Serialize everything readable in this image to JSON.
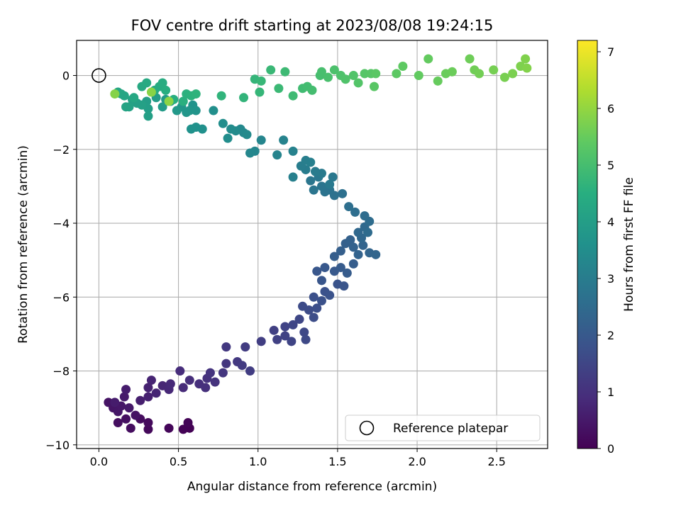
{
  "chart_data": {
    "type": "scatter",
    "title": "FOV centre drift starting at 2023/08/08 19:24:15",
    "xlabel": "Angular distance from reference (arcmin)",
    "ylabel": "Rotation from reference (arcmin)",
    "xlim": [
      -0.14,
      2.82
    ],
    "ylim": [
      -10.1,
      0.95
    ],
    "xticks": [
      0.0,
      0.5,
      1.0,
      1.5,
      2.0,
      2.5
    ],
    "xtick_labels": [
      "0.0",
      "0.5",
      "1.0",
      "1.5",
      "2.0",
      "2.5"
    ],
    "yticks": [
      0,
      -2,
      -4,
      -6,
      -8,
      -10
    ],
    "ytick_labels": [
      "0",
      "−2",
      "−4",
      "−6",
      "−8",
      "−10"
    ],
    "grid": true,
    "colormap": "viridis",
    "colorbar": {
      "label": "Hours from first FF file",
      "range": [
        0,
        7.2
      ],
      "ticks": [
        0,
        1,
        2,
        3,
        4,
        5,
        6,
        7
      ],
      "tick_labels": [
        "0",
        "1",
        "2",
        "3",
        "4",
        "5",
        "6",
        "7"
      ]
    },
    "legend": {
      "placement": "lower-right",
      "entries": [
        "Reference platepar"
      ]
    },
    "reference_point": {
      "x": 0.0,
      "y": 0.0,
      "marker": "open-circle",
      "color": "#000000"
    },
    "series": [
      {
        "color_by": "Hours from first FF file",
        "points": [
          [
            0.57,
            -9.55,
            0.02
          ],
          [
            0.53,
            -9.58,
            0.05
          ],
          [
            0.56,
            -9.4,
            0.08
          ],
          [
            0.44,
            -9.55,
            0.11
          ],
          [
            0.31,
            -9.58,
            0.14
          ],
          [
            0.31,
            -9.4,
            0.18
          ],
          [
            0.26,
            -9.3,
            0.22
          ],
          [
            0.2,
            -9.55,
            0.25
          ],
          [
            0.12,
            -9.4,
            0.28
          ],
          [
            0.17,
            -9.3,
            0.31
          ],
          [
            0.23,
            -9.2,
            0.34
          ],
          [
            0.06,
            -8.85,
            0.37
          ],
          [
            0.09,
            -9.0,
            0.4
          ],
          [
            0.12,
            -9.1,
            0.43
          ],
          [
            0.14,
            -8.95,
            0.46
          ],
          [
            0.19,
            -9.0,
            0.49
          ],
          [
            0.16,
            -8.7,
            0.52
          ],
          [
            0.1,
            -8.85,
            0.55
          ],
          [
            0.17,
            -8.5,
            0.58
          ],
          [
            0.26,
            -8.8,
            0.61
          ],
          [
            0.31,
            -8.7,
            0.64
          ],
          [
            0.31,
            -8.45,
            0.68
          ],
          [
            0.33,
            -8.25,
            0.71
          ],
          [
            0.36,
            -8.6,
            0.74
          ],
          [
            0.4,
            -8.4,
            0.77
          ],
          [
            0.44,
            -8.5,
            0.8
          ],
          [
            0.45,
            -8.35,
            0.83
          ],
          [
            0.53,
            -8.45,
            0.86
          ],
          [
            0.51,
            -8.0,
            0.89
          ],
          [
            0.57,
            -8.25,
            0.92
          ],
          [
            0.63,
            -8.35,
            0.95
          ],
          [
            0.67,
            -8.45,
            0.98
          ],
          [
            0.68,
            -8.2,
            1.01
          ],
          [
            0.73,
            -8.3,
            1.04
          ],
          [
            0.7,
            -8.05,
            1.08
          ],
          [
            0.78,
            -8.05,
            1.11
          ],
          [
            0.8,
            -7.8,
            1.14
          ],
          [
            0.8,
            -7.35,
            1.17
          ],
          [
            0.87,
            -7.75,
            1.2
          ],
          [
            0.9,
            -7.85,
            1.23
          ],
          [
            0.92,
            -7.35,
            1.26
          ],
          [
            0.95,
            -8.0,
            1.29
          ],
          [
            1.02,
            -7.2,
            1.32
          ],
          [
            1.1,
            -6.9,
            1.35
          ],
          [
            1.12,
            -7.15,
            1.38
          ],
          [
            1.17,
            -7.05,
            1.41
          ],
          [
            1.17,
            -6.8,
            1.44
          ],
          [
            1.21,
            -7.2,
            1.47
          ],
          [
            1.22,
            -6.75,
            1.5
          ],
          [
            1.26,
            -6.6,
            1.53
          ],
          [
            1.29,
            -6.95,
            1.56
          ],
          [
            1.3,
            -7.15,
            1.59
          ],
          [
            1.28,
            -6.25,
            1.62
          ],
          [
            1.32,
            -6.35,
            1.65
          ],
          [
            1.35,
            -6.55,
            1.68
          ],
          [
            1.37,
            -6.3,
            1.71
          ],
          [
            1.35,
            -6.0,
            1.74
          ],
          [
            1.4,
            -6.1,
            1.77
          ],
          [
            1.42,
            -5.85,
            1.8
          ],
          [
            1.45,
            -5.95,
            1.83
          ],
          [
            1.5,
            -5.65,
            1.86
          ],
          [
            1.54,
            -5.7,
            1.89
          ],
          [
            1.4,
            -5.55,
            1.92
          ],
          [
            1.37,
            -5.3,
            1.95
          ],
          [
            1.42,
            -5.2,
            1.98
          ],
          [
            1.48,
            -5.3,
            2.01
          ],
          [
            1.52,
            -5.2,
            2.04
          ],
          [
            1.56,
            -5.35,
            2.07
          ],
          [
            1.6,
            -5.1,
            2.1
          ],
          [
            1.48,
            -4.9,
            2.13
          ],
          [
            1.52,
            -4.75,
            2.16
          ],
          [
            1.55,
            -4.55,
            2.19
          ],
          [
            1.58,
            -4.45,
            2.22
          ],
          [
            1.6,
            -4.65,
            2.25
          ],
          [
            1.63,
            -4.85,
            2.28
          ],
          [
            1.66,
            -4.6,
            2.31
          ],
          [
            1.7,
            -4.8,
            2.34
          ],
          [
            1.74,
            -4.85,
            2.37
          ],
          [
            1.65,
            -4.4,
            2.4
          ],
          [
            1.63,
            -4.25,
            2.43
          ],
          [
            1.67,
            -4.1,
            2.46
          ],
          [
            1.69,
            -4.25,
            2.49
          ],
          [
            1.7,
            -3.95,
            2.52
          ],
          [
            1.67,
            -3.8,
            2.55
          ],
          [
            1.61,
            -3.7,
            2.58
          ],
          [
            1.57,
            -3.55,
            2.61
          ],
          [
            1.53,
            -3.2,
            2.64
          ],
          [
            1.48,
            -3.25,
            2.67
          ],
          [
            1.45,
            -3.1,
            2.7
          ],
          [
            1.42,
            -3.15,
            2.73
          ],
          [
            1.4,
            -3.0,
            2.76
          ],
          [
            1.35,
            -3.1,
            2.79
          ],
          [
            1.33,
            -2.85,
            2.82
          ],
          [
            1.38,
            -2.75,
            2.85
          ],
          [
            1.47,
            -2.75,
            2.88
          ],
          [
            1.45,
            -2.95,
            2.91
          ],
          [
            1.4,
            -2.65,
            2.94
          ],
          [
            1.36,
            -2.6,
            2.97
          ],
          [
            1.3,
            -2.55,
            3.0
          ],
          [
            1.27,
            -2.45,
            3.03
          ],
          [
            1.3,
            -2.3,
            3.06
          ],
          [
            1.33,
            -2.35,
            3.09
          ],
          [
            1.22,
            -2.75,
            3.12
          ],
          [
            1.22,
            -2.05,
            3.15
          ],
          [
            1.16,
            -1.75,
            3.18
          ],
          [
            1.12,
            -2.15,
            3.21
          ],
          [
            1.02,
            -1.75,
            3.24
          ],
          [
            0.98,
            -2.05,
            3.27
          ],
          [
            0.95,
            -2.1,
            3.3
          ],
          [
            0.91,
            -1.55,
            3.33
          ],
          [
            0.89,
            -1.45,
            3.36
          ],
          [
            0.93,
            -1.6,
            3.39
          ],
          [
            0.86,
            -1.5,
            3.42
          ],
          [
            0.83,
            -1.45,
            3.45
          ],
          [
            0.81,
            -1.7,
            3.48
          ],
          [
            0.78,
            -1.3,
            3.51
          ],
          [
            0.72,
            -0.95,
            3.54
          ],
          [
            0.65,
            -1.45,
            3.57
          ],
          [
            0.61,
            -1.4,
            3.6
          ],
          [
            0.58,
            -1.45,
            3.63
          ],
          [
            0.59,
            -0.8,
            3.66
          ],
          [
            0.61,
            -0.95,
            3.69
          ],
          [
            0.57,
            -0.95,
            3.72
          ],
          [
            0.55,
            -1.0,
            3.75
          ],
          [
            0.52,
            -0.85,
            3.78
          ],
          [
            0.49,
            -0.95,
            3.81
          ],
          [
            0.45,
            -0.7,
            3.84
          ],
          [
            0.42,
            -0.65,
            3.87
          ],
          [
            0.4,
            -0.85,
            3.9
          ],
          [
            0.36,
            -0.6,
            3.93
          ],
          [
            0.3,
            -0.7,
            3.96
          ],
          [
            0.31,
            -0.9,
            3.99
          ],
          [
            0.31,
            -1.1,
            4.02
          ],
          [
            0.27,
            -0.8,
            4.05
          ],
          [
            0.24,
            -0.75,
            4.08
          ],
          [
            0.21,
            -0.65,
            4.11
          ],
          [
            0.19,
            -0.85,
            4.14
          ],
          [
            0.17,
            -0.85,
            4.17
          ],
          [
            0.14,
            -0.5,
            4.2
          ],
          [
            0.16,
            -0.55,
            4.23
          ],
          [
            0.12,
            -0.45,
            4.26
          ],
          [
            0.22,
            -0.6,
            4.29
          ],
          [
            0.27,
            -0.3,
            4.32
          ],
          [
            0.3,
            -0.2,
            4.35
          ],
          [
            0.35,
            -0.4,
            4.38
          ],
          [
            0.38,
            -0.3,
            4.41
          ],
          [
            0.4,
            -0.2,
            4.44
          ],
          [
            0.42,
            -0.4,
            4.47
          ],
          [
            0.47,
            -0.65,
            4.5
          ],
          [
            0.53,
            -0.7,
            4.53
          ],
          [
            0.55,
            -0.5,
            4.56
          ],
          [
            0.58,
            -0.55,
            4.59
          ],
          [
            0.61,
            -0.5,
            4.62
          ],
          [
            0.77,
            -0.55,
            4.65
          ],
          [
            0.91,
            -0.6,
            4.68
          ],
          [
            0.98,
            -0.1,
            4.71
          ],
          [
            1.01,
            -0.45,
            4.74
          ],
          [
            1.02,
            -0.15,
            4.77
          ],
          [
            1.08,
            0.15,
            4.8
          ],
          [
            1.13,
            -0.35,
            4.83
          ],
          [
            1.17,
            0.1,
            4.86
          ],
          [
            1.22,
            -0.55,
            4.89
          ],
          [
            1.28,
            -0.35,
            4.92
          ],
          [
            1.31,
            -0.3,
            4.95
          ],
          [
            1.34,
            -0.4,
            4.98
          ],
          [
            1.39,
            0.0,
            5.01
          ],
          [
            1.4,
            0.1,
            5.04
          ],
          [
            1.44,
            -0.05,
            5.07
          ],
          [
            1.48,
            0.15,
            5.1
          ],
          [
            1.52,
            0.0,
            5.13
          ],
          [
            1.55,
            -0.1,
            5.16
          ],
          [
            1.6,
            0.0,
            5.19
          ],
          [
            1.63,
            -0.2,
            5.22
          ],
          [
            1.67,
            0.05,
            5.25
          ],
          [
            1.71,
            0.05,
            5.28
          ],
          [
            1.73,
            -0.3,
            5.31
          ],
          [
            1.74,
            0.05,
            5.34
          ],
          [
            1.87,
            0.05,
            5.37
          ],
          [
            1.91,
            0.25,
            5.4
          ],
          [
            2.01,
            0.0,
            5.43
          ],
          [
            2.07,
            0.45,
            5.46
          ],
          [
            2.13,
            -0.15,
            5.49
          ],
          [
            2.18,
            0.05,
            5.52
          ],
          [
            2.22,
            0.1,
            5.55
          ],
          [
            2.33,
            0.45,
            5.58
          ],
          [
            2.36,
            0.15,
            5.61
          ],
          [
            2.39,
            0.05,
            5.64
          ],
          [
            2.48,
            0.15,
            5.67
          ],
          [
            2.55,
            -0.05,
            5.7
          ],
          [
            2.6,
            0.05,
            5.73
          ],
          [
            2.65,
            0.25,
            5.76
          ],
          [
            2.68,
            0.45,
            5.79
          ],
          [
            2.69,
            0.2,
            5.82
          ],
          [
            0.1,
            -0.5,
            5.85
          ],
          [
            0.33,
            -0.45,
            5.88
          ],
          [
            0.44,
            -0.7,
            5.91
          ]
        ]
      }
    ]
  }
}
